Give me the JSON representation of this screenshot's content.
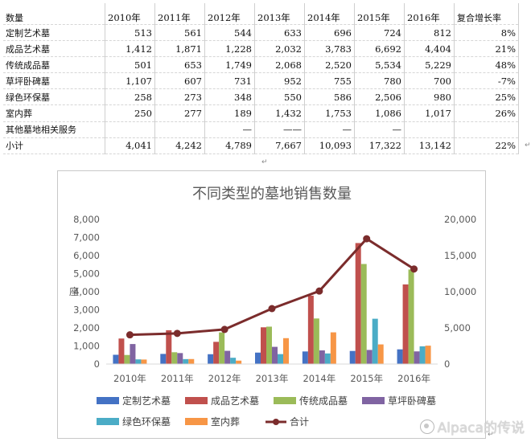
{
  "table": {
    "header_label": "数量",
    "years": [
      "2010年",
      "2011年",
      "2012年",
      "2013年",
      "2014年",
      "2015年",
      "2016年"
    ],
    "cagr_header": "复合增长率",
    "rows": [
      {
        "label": "定制艺术墓",
        "values": [
          "513",
          "561",
          "544",
          "633",
          "696",
          "724",
          "812"
        ],
        "cagr": "8%"
      },
      {
        "label": "成品艺术墓",
        "values": [
          "1,412",
          "1,871",
          "1,228",
          "2,032",
          "3,783",
          "6,692",
          "4,404"
        ],
        "cagr": "21%"
      },
      {
        "label": "传统成品墓",
        "values": [
          "501",
          "653",
          "1,749",
          "2,068",
          "2,520",
          "5,534",
          "5,229"
        ],
        "cagr": "48%"
      },
      {
        "label": "草坪卧碑墓",
        "values": [
          "1,107",
          "607",
          "731",
          "952",
          "755",
          "780",
          "700"
        ],
        "cagr": "-7%"
      },
      {
        "label": "绿色环保墓",
        "values": [
          "258",
          "273",
          "348",
          "550",
          "586",
          "2,506",
          "980"
        ],
        "cagr": "25%"
      },
      {
        "label": "室内葬",
        "values": [
          "250",
          "277",
          "189",
          "1,432",
          "1,753",
          "1,086",
          "1,017"
        ],
        "cagr": "26%"
      },
      {
        "label": "其他墓地相关服务",
        "values": [
          "",
          "",
          "—",
          "——",
          "—",
          "—",
          ""
        ],
        "cagr": ""
      },
      {
        "label": "小计",
        "values": [
          "4,041",
          "4,242",
          "4,789",
          "7,667",
          "10,093",
          "17,322",
          "13,142"
        ],
        "cagr": "22%"
      }
    ]
  },
  "chart_data": {
    "type": "bar",
    "title": "不同类型的墓地销售数量",
    "ylabel": "座",
    "categories": [
      "2010年",
      "2011年",
      "2012年",
      "2013年",
      "2014年",
      "2015年",
      "2016年"
    ],
    "ylim": [
      0,
      8000
    ],
    "y_ticks": [
      "0",
      "1,000",
      "2,000",
      "3,000",
      "4,000",
      "5,000",
      "6,000",
      "7,000",
      "8,000"
    ],
    "y2lim": [
      0,
      20000
    ],
    "y2_ticks": [
      "0",
      "5,000",
      "10,000",
      "15,000",
      "20,000"
    ],
    "grid": false,
    "legend_position": "bottom",
    "series": [
      {
        "name": "定制艺术墓",
        "color": "#4472C4",
        "values": [
          513,
          561,
          544,
          633,
          696,
          724,
          812
        ]
      },
      {
        "name": "成品艺术墓",
        "color": "#C0504D",
        "values": [
          1412,
          1871,
          1228,
          2032,
          3783,
          6692,
          4404
        ]
      },
      {
        "name": "传统成品墓",
        "color": "#9BBB59",
        "values": [
          501,
          653,
          1749,
          2068,
          2520,
          5534,
          5229
        ]
      },
      {
        "name": "草坪卧碑墓",
        "color": "#8064A2",
        "values": [
          1107,
          607,
          731,
          952,
          755,
          780,
          700
        ]
      },
      {
        "name": "绿色环保墓",
        "color": "#4BACC6",
        "values": [
          258,
          273,
          348,
          550,
          586,
          2506,
          980
        ]
      },
      {
        "name": "室内葬",
        "color": "#F79646",
        "values": [
          250,
          277,
          189,
          1432,
          1753,
          1086,
          1017
        ]
      }
    ],
    "line_series": {
      "name": "合计",
      "color": "#7B2C2C",
      "axis": "right",
      "values": [
        4041,
        4242,
        4789,
        7667,
        10093,
        17322,
        13142
      ]
    }
  },
  "watermark": "Alpaca的传说"
}
